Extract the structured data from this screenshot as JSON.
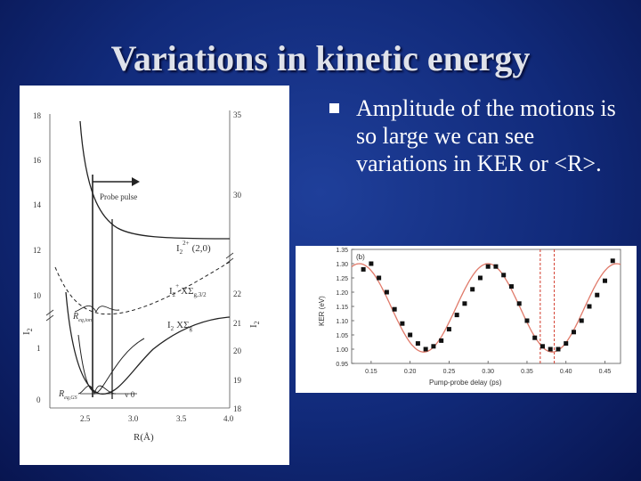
{
  "slide": {
    "title": "Variations in kinetic energy",
    "bullet_text": "Amplitude of the motions is so large we can see variations in KER or <R>."
  },
  "colors": {
    "background": "#112a7a",
    "title": "#dfe2ea",
    "bullet": "#ffffff",
    "fit_line": "#e07a6a",
    "dashed_marker": "#d23a2a"
  },
  "left_figure": {
    "left_axis_ticks": [
      "18",
      "16",
      "14",
      "12",
      "10",
      "1",
      "0"
    ],
    "right_axis_ticks": [
      "35",
      "30",
      "22",
      "21",
      "20",
      "19",
      "18"
    ],
    "x_ticks": [
      "2.5",
      "3.0",
      "3.5",
      "4.0"
    ],
    "xlabel": "R(Å)",
    "probe_label": "Probe pulse",
    "i2_2plus_label": "I",
    "i2_2plus_sub": "2",
    "i2_2plus_sup": "2+",
    "i2_2plus_state": "(2,0)",
    "i2_plus_label": "I",
    "i2_plus_sub": "2",
    "i2_plus_sup": "+",
    "i2_plus_state": "XΣ",
    "i2_plus_state_sub": "g,3/2",
    "i2_ground_label": "I",
    "i2_ground_sub": "2",
    "i2_ground_state": "XΣ",
    "i2_ground_state_sub": "g",
    "v0_label": "v 0",
    "req_ion_label": "R",
    "req_ion_sub": "eq,ion",
    "req_gs_label": "R",
    "req_gs_sub": "eq,GS",
    "left_axis_label": "I",
    "left_axis_label_sub": "2",
    "right_axis_label": "I",
    "right_axis_label_sub": "2"
  },
  "chart_data": {
    "type": "scatter",
    "panel_label": "(b)",
    "xlabel": "Pump-probe delay (ps)",
    "ylabel": "KER (eV)",
    "xlim": [
      0.125,
      0.47
    ],
    "ylim": [
      0.95,
      1.35
    ],
    "x_ticks": [
      "0.15",
      "0.20",
      "0.25",
      "0.30",
      "0.35",
      "0.40",
      "0.45"
    ],
    "y_ticks": [
      "0.95",
      "1.00",
      "1.05",
      "1.10",
      "1.15",
      "1.20",
      "1.25",
      "1.30",
      "1.35"
    ],
    "series": [
      {
        "x": [
          0.14,
          0.15,
          0.16,
          0.17,
          0.18,
          0.19,
          0.2,
          0.21,
          0.22,
          0.23,
          0.24,
          0.25,
          0.26,
          0.27,
          0.28,
          0.29,
          0.3,
          0.31,
          0.32,
          0.33,
          0.34,
          0.35,
          0.36,
          0.37,
          0.38,
          0.39,
          0.4,
          0.41,
          0.42,
          0.43,
          0.44,
          0.45,
          0.46
        ],
        "y": [
          1.28,
          1.3,
          1.25,
          1.2,
          1.14,
          1.09,
          1.05,
          1.02,
          1.0,
          1.01,
          1.03,
          1.07,
          1.12,
          1.16,
          1.21,
          1.25,
          1.29,
          1.29,
          1.26,
          1.22,
          1.16,
          1.1,
          1.04,
          1.01,
          1.0,
          1.0,
          1.02,
          1.06,
          1.1,
          1.15,
          1.19,
          1.24,
          1.31
        ]
      }
    ],
    "fit": {
      "type": "sinusoid",
      "mean": 1.145,
      "amplitude": 0.155,
      "period_ps": 0.165,
      "peak_ps": 0.3,
      "color": "#e07a6a"
    },
    "vertical_markers": [
      0.367,
      0.385
    ],
    "grid": false
  }
}
